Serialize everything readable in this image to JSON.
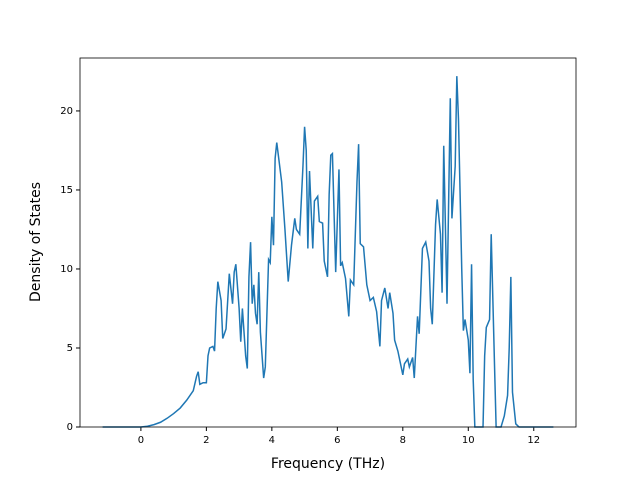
{
  "chart_data": {
    "type": "line",
    "x_label": "Frequency (THz)",
    "y_label": "Density of States",
    "x": [
      -1.17,
      0,
      0.2,
      0.4,
      0.6,
      0.8,
      1.0,
      1.2,
      1.4,
      1.6,
      1.7,
      1.75,
      1.8,
      1.9,
      2.0,
      2.05,
      2.1,
      2.2,
      2.25,
      2.3,
      2.35,
      2.45,
      2.5,
      2.6,
      2.7,
      2.8,
      2.85,
      2.9,
      3.0,
      3.05,
      3.1,
      3.2,
      3.25,
      3.3,
      3.35,
      3.4,
      3.45,
      3.5,
      3.55,
      3.6,
      3.65,
      3.75,
      3.8,
      3.9,
      3.95,
      4.0,
      4.05,
      4.1,
      4.15,
      4.3,
      4.4,
      4.5,
      4.6,
      4.7,
      4.75,
      4.85,
      4.95,
      5.0,
      5.05,
      5.1,
      5.15,
      5.25,
      5.3,
      5.4,
      5.45,
      5.55,
      5.6,
      5.7,
      5.75,
      5.8,
      5.85,
      5.95,
      6.05,
      6.1,
      6.15,
      6.25,
      6.35,
      6.4,
      6.5,
      6.6,
      6.65,
      6.7,
      6.8,
      6.9,
      7.0,
      7.1,
      7.2,
      7.3,
      7.35,
      7.45,
      7.55,
      7.6,
      7.7,
      7.75,
      7.85,
      7.95,
      8.0,
      8.05,
      8.15,
      8.2,
      8.3,
      8.35,
      8.45,
      8.5,
      8.6,
      8.7,
      8.8,
      8.85,
      8.9,
      9.0,
      9.05,
      9.15,
      9.2,
      9.25,
      9.35,
      9.45,
      9.5,
      9.6,
      9.65,
      9.7,
      9.8,
      9.85,
      9.9,
      10.0,
      10.05,
      10.1,
      10.15,
      10.2,
      10.45,
      10.5,
      10.55,
      10.65,
      10.7,
      10.8,
      10.85,
      11.0,
      11.1,
      11.2,
      11.25,
      11.3,
      11.35,
      11.45,
      11.55,
      12.6
    ],
    "series": [
      {
        "color": "#1f77b4",
        "values": [
          0,
          0,
          0.05,
          0.15,
          0.3,
          0.55,
          0.85,
          1.2,
          1.7,
          2.3,
          3.2,
          3.5,
          2.7,
          2.8,
          2.8,
          4.5,
          5.0,
          5.1,
          4.8,
          7.5,
          9.2,
          8.0,
          5.6,
          6.2,
          9.7,
          7.8,
          9.8,
          10.3,
          7.5,
          5.4,
          7.5,
          4.5,
          3.7,
          9.5,
          11.7,
          7.8,
          9.0,
          7.2,
          6.5,
          9.8,
          6.0,
          3.1,
          3.8,
          10.6,
          10.4,
          13.3,
          11.5,
          17.0,
          18.0,
          15.5,
          12.5,
          9.2,
          11.5,
          13.2,
          12.5,
          12.2,
          16.5,
          19.0,
          17.5,
          11.3,
          16.2,
          11.3,
          14.3,
          14.6,
          13.0,
          12.9,
          10.5,
          9.5,
          14.7,
          17.2,
          17.3,
          9.8,
          16.3,
          10.2,
          10.4,
          9.4,
          7.0,
          9.3,
          9.0,
          15.5,
          17.9,
          11.6,
          11.4,
          9.0,
          8.0,
          8.2,
          7.3,
          5.1,
          8.0,
          8.8,
          7.5,
          8.5,
          7.2,
          5.5,
          4.8,
          3.8,
          3.3,
          4.0,
          4.3,
          3.8,
          4.4,
          3.1,
          7.0,
          5.9,
          11.3,
          11.7,
          10.5,
          7.5,
          6.5,
          12.8,
          14.4,
          12.2,
          8.5,
          17.8,
          7.8,
          20.8,
          13.2,
          16.5,
          22.2,
          19.5,
          10.0,
          6.1,
          6.8,
          5.5,
          3.4,
          10.3,
          3.0,
          0,
          0,
          4.5,
          6.3,
          6.8,
          12.2,
          4.0,
          0,
          0,
          0.7,
          2.0,
          5.0,
          9.5,
          2.2,
          0.2,
          0,
          0
        ]
      }
    ],
    "xlim": [
      -1.86,
      13.29
    ],
    "ylim": [
      0,
      23.35
    ],
    "xticks": [
      0,
      2,
      4,
      6,
      8,
      10,
      12
    ],
    "yticks": [
      0,
      5,
      10,
      15,
      20
    ]
  }
}
